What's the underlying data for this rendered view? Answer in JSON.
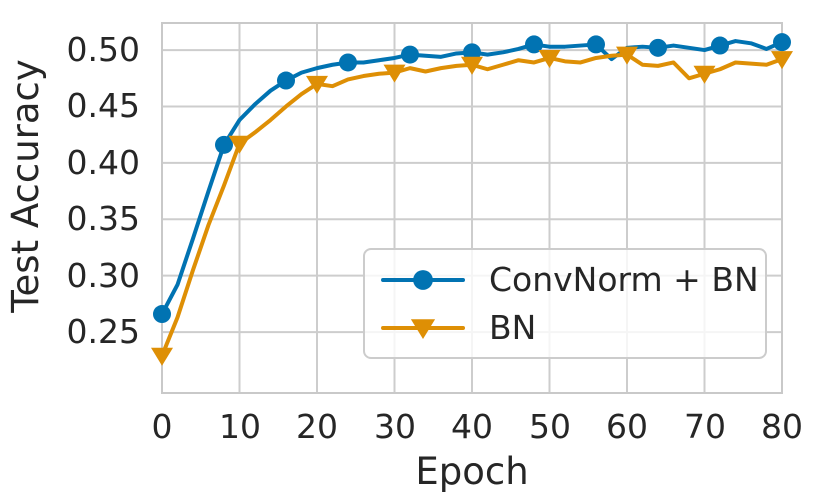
{
  "style": {
    "background": "#ffffff",
    "grid_color": "#cdcdcd",
    "spine_color": "#c9c9c9",
    "text_color": "#262626",
    "legend_border_color": "#cccccc"
  },
  "chart_data": {
    "type": "line",
    "title": "",
    "xlabel": "Epoch",
    "ylabel": "Test Accuracy",
    "xlim": [
      0,
      80
    ],
    "ylim": [
      0.196,
      0.524
    ],
    "grid": true,
    "legend_position": "inside lower right",
    "xticks": [
      0,
      10,
      20,
      30,
      40,
      50,
      60,
      70,
      80
    ],
    "xtick_labels": [
      "0",
      "10",
      "20",
      "30",
      "40",
      "50",
      "60",
      "70",
      "80"
    ],
    "yticks": [
      0.5,
      0.45,
      0.4,
      0.35,
      0.3,
      0.25
    ],
    "ytick_labels": [
      "0.50",
      "0.45",
      "0.40",
      "0.35",
      "0.30",
      "0.25"
    ],
    "x": [
      0,
      2,
      4,
      6,
      8,
      10,
      12,
      14,
      16,
      18,
      20,
      22,
      24,
      26,
      28,
      30,
      32,
      34,
      36,
      38,
      40,
      42,
      44,
      46,
      48,
      50,
      52,
      54,
      56,
      58,
      60,
      62,
      64,
      66,
      68,
      70,
      72,
      74,
      76,
      78,
      80
    ],
    "series": [
      {
        "name": "ConvNorm + BN",
        "color": "#0173b2",
        "marker": "circle",
        "marker_every_epochs": 8,
        "values": [
          0.266,
          0.292,
          0.333,
          0.375,
          0.416,
          0.438,
          0.452,
          0.464,
          0.473,
          0.48,
          0.484,
          0.487,
          0.489,
          0.489,
          0.491,
          0.493,
          0.496,
          0.495,
          0.494,
          0.497,
          0.498,
          0.496,
          0.498,
          0.501,
          0.505,
          0.503,
          0.503,
          0.504,
          0.505,
          0.492,
          0.502,
          0.503,
          0.502,
          0.504,
          0.502,
          0.5,
          0.504,
          0.508,
          0.506,
          0.501,
          0.507
        ]
      },
      {
        "name": "BN",
        "color": "#de8f05",
        "marker": "triangle-down",
        "marker_every_epochs": 10,
        "values": [
          0.229,
          0.263,
          0.305,
          0.345,
          0.38,
          0.417,
          0.427,
          0.438,
          0.45,
          0.461,
          0.47,
          0.468,
          0.474,
          0.477,
          0.479,
          0.48,
          0.484,
          0.481,
          0.484,
          0.486,
          0.487,
          0.483,
          0.487,
          0.491,
          0.489,
          0.493,
          0.49,
          0.489,
          0.493,
          0.495,
          0.496,
          0.487,
          0.486,
          0.489,
          0.475,
          0.479,
          0.483,
          0.489,
          0.488,
          0.487,
          0.492
        ]
      }
    ]
  }
}
